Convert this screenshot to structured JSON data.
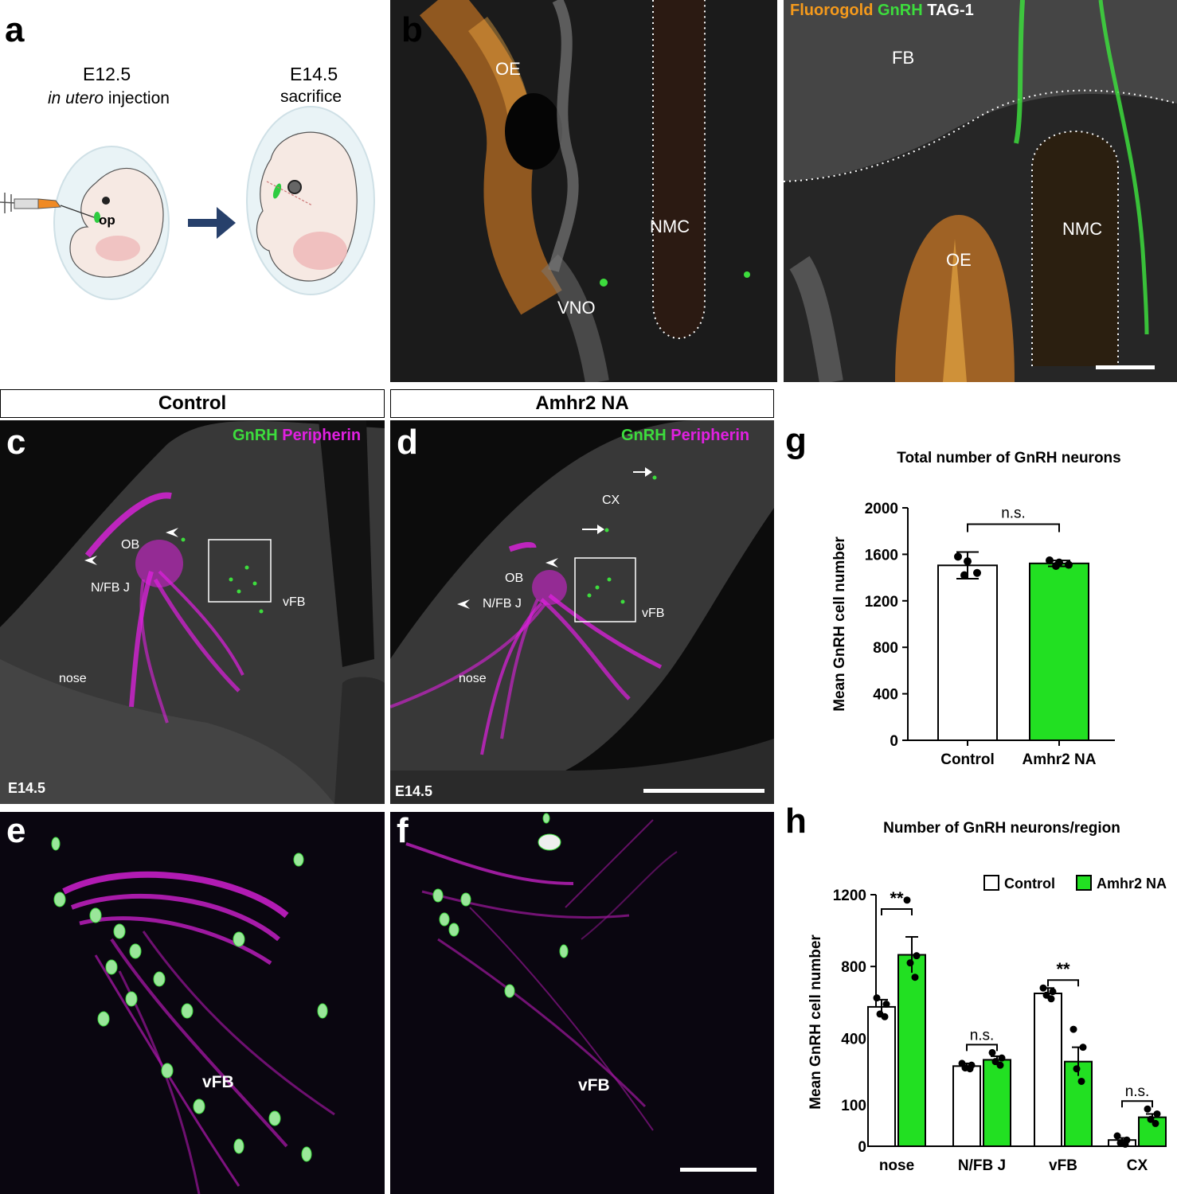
{
  "panels": {
    "a": {
      "letter": "a",
      "left_stage": "E12.5",
      "left_sub_italic": "in utero",
      "left_sub_rest": " injection",
      "right_stage": "E14.5",
      "right_sub": "sacrifice",
      "op_label": "op"
    },
    "b": {
      "letter": "b",
      "left_labels": {
        "oe": "OE",
        "nmc": "NMC",
        "vno": "VNO"
      },
      "right_labels": {
        "fb": "FB",
        "nmc": "NMC",
        "oe": "OE"
      },
      "stain": {
        "fluorogold": "Fluorogold",
        "gnrh": "GnRH",
        "tag1": "TAG-1"
      },
      "colors": {
        "fluorogold": "#f59a1c",
        "gnrh": "#3ddc3d",
        "tag1": "#ffffff"
      }
    },
    "c": {
      "letter": "c",
      "header": "Control",
      "stain": {
        "gnrh": "GnRH",
        "peripherin": "Peripherin"
      },
      "labels": {
        "ob": "OB",
        "nfbj": "N/FB J",
        "vfb": "vFB",
        "nose": "nose",
        "age": "E14.5"
      }
    },
    "d": {
      "letter": "d",
      "header": "Amhr2 NA",
      "stain": {
        "gnrh": "GnRH",
        "peripherin": "Peripherin"
      },
      "labels": {
        "cx": "CX",
        "ob": "OB",
        "nfbj": "N/FB J",
        "vfb": "vFB",
        "nose": "nose",
        "age": "E14.5"
      }
    },
    "e": {
      "letter": "e",
      "label": "vFB"
    },
    "f": {
      "letter": "f",
      "label": "vFB"
    },
    "g": {
      "letter": "g"
    },
    "h": {
      "letter": "h"
    }
  },
  "colors": {
    "gnrh": "#3ddc3d",
    "peripherin": "#e020e0",
    "amhr2_bar": "#22e022",
    "control_bar": "#ffffff"
  },
  "chart_data": [
    {
      "type": "bar",
      "title": "Total number of GnRH neurons",
      "ylabel": "Mean GnRH cell number",
      "categories": [
        "Control",
        "Amhr2 NA"
      ],
      "values": [
        1505,
        1522
      ],
      "errors": [
        115,
        25
      ],
      "points": [
        [
          1580,
          1540,
          1440,
          1420
        ],
        [
          1548,
          1530,
          1510,
          1500
        ]
      ],
      "ylim": [
        0,
        2000
      ],
      "yticks": [
        0,
        400,
        800,
        1200,
        1600,
        2000
      ],
      "significance": [
        "n.s."
      ]
    },
    {
      "type": "bar",
      "title": "Number of GnRH neurons/region",
      "ylabel": "Mean GnRH cell number",
      "categories": [
        "nose",
        "N/FB J",
        "vFB",
        "CX"
      ],
      "series": [
        {
          "name": "Control",
          "values": [
            575,
            245,
            650,
            15
          ],
          "errors": [
            40,
            15,
            30,
            5
          ],
          "points": [
            [
              625,
              590,
              535,
              520
            ],
            [
              260,
              250,
              235,
              230
            ],
            [
              680,
              660,
              640,
              620
            ],
            [
              25,
              15,
              8,
              5
            ]
          ]
        },
        {
          "name": "Amhr2 NA",
          "values": [
            865,
            280,
            270,
            70
          ],
          "errors": [
            100,
            20,
            80,
            8
          ],
          "points": [
            [
              1170,
              860,
              820,
              740
            ],
            [
              320,
              290,
              270,
              250
            ],
            [
              450,
              350,
              230,
              160
            ],
            [
              90,
              78,
              65,
              55
            ]
          ]
        }
      ],
      "yticks_upper": [
        400,
        800,
        1200
      ],
      "yticks_lower": [
        0,
        100
      ],
      "significance": [
        "**",
        "n.s.",
        "**",
        "n.s."
      ],
      "legend_position": "top-right"
    }
  ]
}
